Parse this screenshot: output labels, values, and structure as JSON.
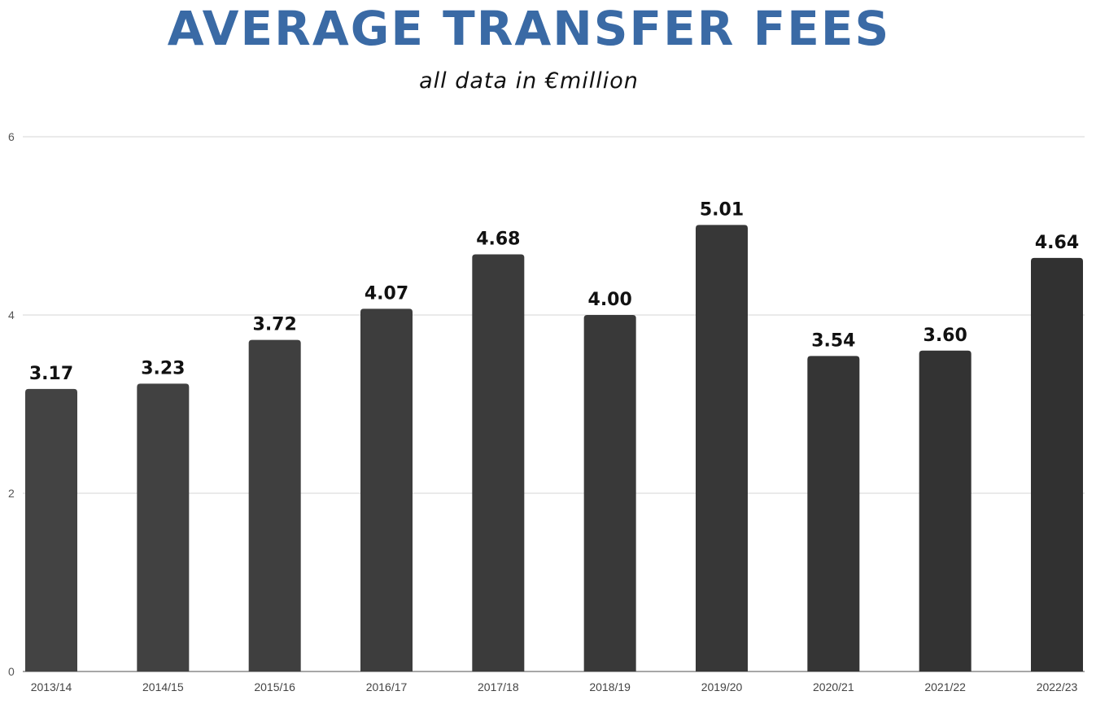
{
  "chart_data": {
    "type": "bar",
    "title": "AVERAGE TRANSFER FEES",
    "subtitle": "all data in  €million",
    "categories": [
      "2013/14",
      "2014/15",
      "2015/16",
      "2016/17",
      "2017/18",
      "2018/19",
      "2019/20",
      "2020/21",
      "2021/22",
      "2022/23"
    ],
    "values": [
      3.17,
      3.23,
      3.72,
      4.07,
      4.68,
      4.0,
      5.01,
      3.54,
      3.6,
      4.64
    ],
    "value_labels": [
      "3.17",
      "3.23",
      "3.72",
      "4.07",
      "4.68",
      "4.00",
      "5.01",
      "3.54",
      "3.60",
      "4.64"
    ],
    "ylim": [
      0,
      6
    ],
    "yticks": [
      0,
      2,
      4,
      6
    ],
    "grid": true,
    "legend": "none",
    "colors": {
      "title": "#3a6aa5",
      "bars": [
        "#434343",
        "#414141",
        "#3f3f3f",
        "#3d3d3d",
        "#3b3b3b",
        "#393939",
        "#373737",
        "#353535",
        "#333333",
        "#313131"
      ]
    }
  }
}
